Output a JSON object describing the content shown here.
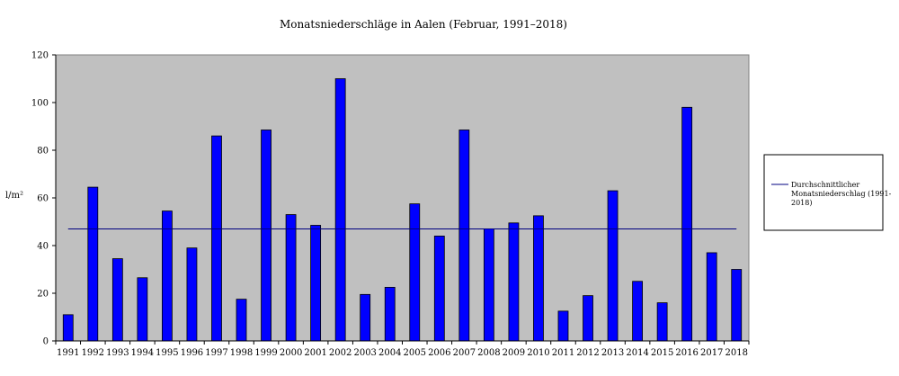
{
  "chart_data": {
    "type": "bar",
    "title": "Monatsniederschläge in Aalen (Februar, 1991–2018)",
    "ylabel": "l/m²",
    "xlabel": "",
    "ylim": [
      0,
      120
    ],
    "yticks": [
      0,
      20,
      40,
      60,
      80,
      100,
      120
    ],
    "grid": false,
    "legend_position": "right",
    "colors": {
      "bar": "#0000ff",
      "plot_bg": "#c0c0c0",
      "mean_line": "#000080"
    },
    "categories": [
      "1991",
      "1992",
      "1993",
      "1994",
      "1995",
      "1996",
      "1997",
      "1998",
      "1999",
      "2000",
      "2001",
      "2002",
      "2003",
      "2004",
      "2005",
      "2006",
      "2007",
      "2008",
      "2009",
      "2010",
      "2011",
      "2012",
      "2013",
      "2014",
      "2015",
      "2016",
      "2017",
      "2018"
    ],
    "values": [
      11,
      64.5,
      34.5,
      26.5,
      54.5,
      39,
      86,
      17.5,
      88.5,
      53,
      48.5,
      110,
      19.5,
      22.5,
      57.5,
      44,
      88.5,
      47,
      49.5,
      52.5,
      12.5,
      19,
      63,
      25,
      16,
      98,
      37,
      30
    ],
    "mean_line": {
      "value": 47,
      "label_lines": [
        "Durchschnittlicher",
        "Monatsniederschlag (1991-",
        "2018)"
      ]
    }
  }
}
